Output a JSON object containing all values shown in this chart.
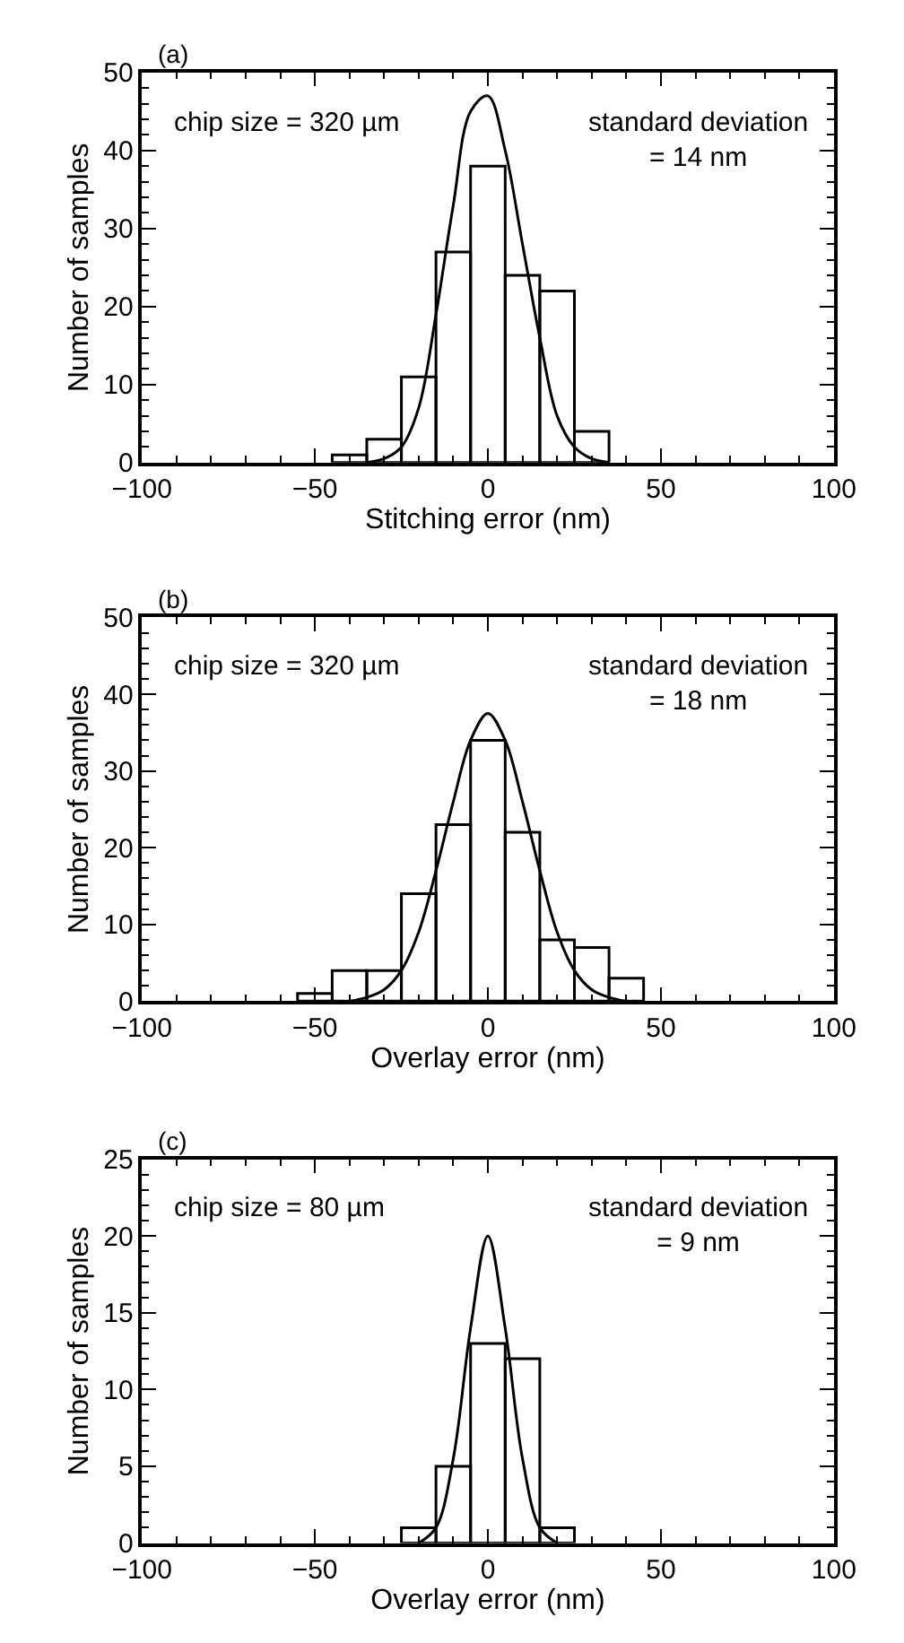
{
  "chart_data": [
    {
      "type": "histogram",
      "title": "(a)",
      "xlabel": "Stitching error (nm)",
      "ylabel": "Number of samples",
      "xlim": [
        -100,
        100
      ],
      "xticks": [
        -100,
        -50,
        0,
        50,
        100
      ],
      "ylim": [
        0,
        50
      ],
      "yticks": [
        0,
        10,
        20,
        30,
        40,
        50
      ],
      "annotations": [
        "chip size = 320 µm",
        "standard deviation\n= 14 nm"
      ],
      "series": [
        {
          "color": "#000000",
          "bins": [
            -45,
            -35,
            -25,
            -15,
            -5,
            5,
            15,
            25,
            35
          ],
          "values": [
            1,
            3,
            11,
            27,
            38,
            24,
            22,
            4
          ]
        },
        {
          "type": "line",
          "color": "#000000",
          "x": [
            -35,
            -30,
            -25,
            -20,
            -15,
            -10,
            -5,
            0,
            5,
            10,
            15,
            20,
            25,
            30,
            35
          ],
          "values": [
            0,
            0.5,
            2,
            7,
            19,
            33,
            45,
            47,
            40,
            28,
            16,
            6,
            2,
            0.5,
            0
          ]
        }
      ]
    },
    {
      "type": "histogram",
      "title": "(b)",
      "xlabel": "Overlay error (nm)",
      "ylabel": "Number of samples",
      "xlim": [
        -100,
        100
      ],
      "xticks": [
        -100,
        -50,
        0,
        50,
        100
      ],
      "ylim": [
        0,
        50
      ],
      "yticks": [
        0,
        10,
        20,
        30,
        40,
        50
      ],
      "annotations": [
        "chip size = 320 µm",
        "standard deviation\n= 18 nm"
      ],
      "series": [
        {
          "color": "#000000",
          "bins": [
            -55,
            -45,
            -35,
            -25,
            -15,
            -5,
            5,
            15,
            25,
            35,
            45
          ],
          "values": [
            1,
            4,
            4,
            14,
            23,
            34,
            22,
            8,
            7,
            3
          ]
        },
        {
          "type": "line",
          "color": "#000000",
          "x": [
            -40,
            -35,
            -30,
            -25,
            -20,
            -15,
            -10,
            -5,
            0,
            5,
            10,
            15,
            20,
            25,
            30,
            35,
            40
          ],
          "values": [
            0,
            0.5,
            1.5,
            4,
            9,
            17,
            26,
            34,
            37.5,
            34,
            26,
            17,
            9,
            4,
            1.5,
            0.5,
            0
          ]
        }
      ]
    },
    {
      "type": "histogram",
      "title": "(c)",
      "xlabel": "Overlay error (nm)",
      "ylabel": "Number of samples",
      "xlim": [
        -100,
        100
      ],
      "xticks": [
        -100,
        -50,
        0,
        50,
        100
      ],
      "ylim": [
        0,
        25
      ],
      "yticks": [
        0,
        5,
        10,
        15,
        20,
        25
      ],
      "annotations": [
        "chip size = 80 µm",
        "standard deviation\n= 9 nm"
      ],
      "series": [
        {
          "color": "#000000",
          "bins": [
            -25,
            -15,
            -5,
            5,
            15,
            25
          ],
          "values": [
            1,
            5,
            13,
            12,
            1
          ]
        },
        {
          "type": "line",
          "color": "#000000",
          "x": [
            -20,
            -15,
            -10,
            -5,
            0,
            5,
            10,
            15,
            20
          ],
          "values": [
            0,
            1,
            5.5,
            14,
            20,
            14,
            5.5,
            1,
            0
          ]
        }
      ]
    }
  ]
}
